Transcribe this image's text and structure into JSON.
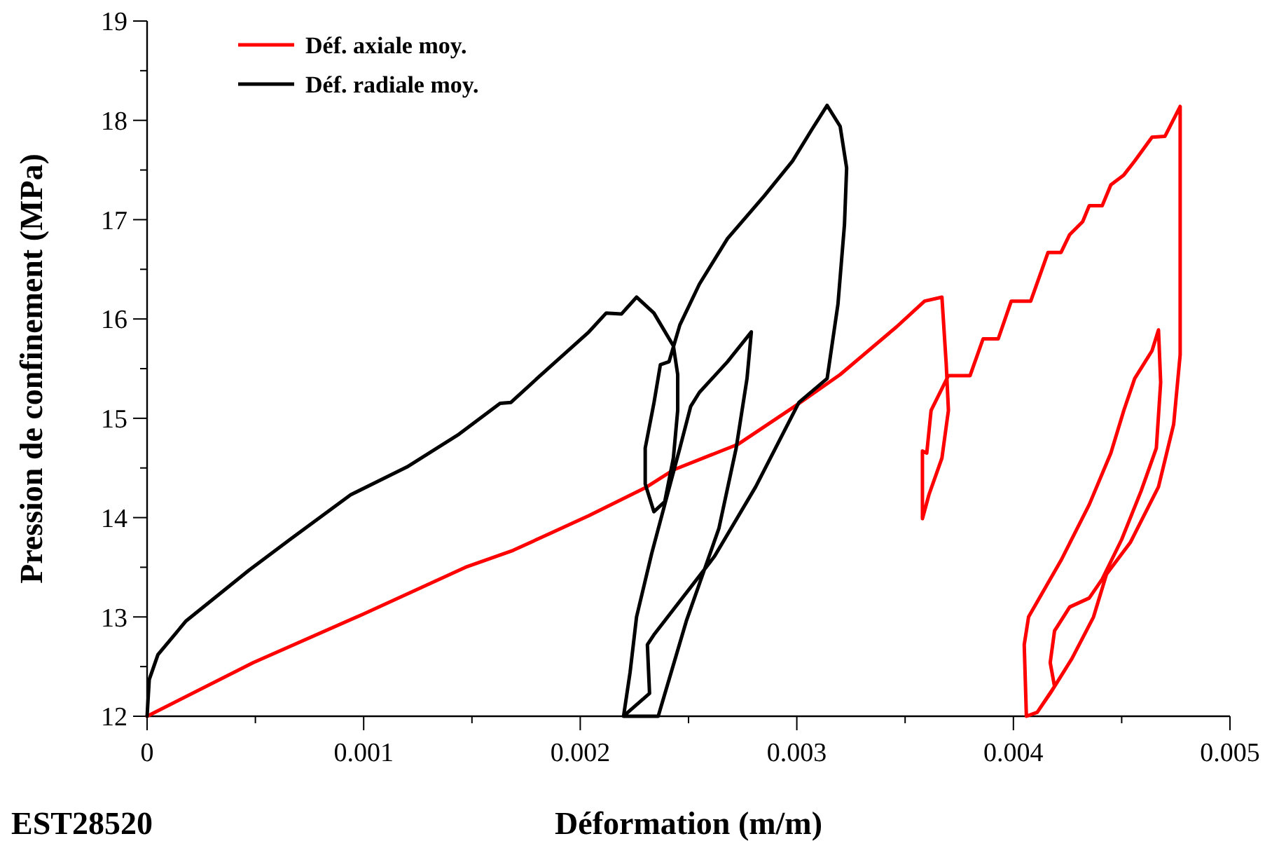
{
  "chart_data": {
    "type": "line",
    "xlabel": "Déformation (m/m)",
    "ylabel": "Pression de confinement (MPa)",
    "annotations": [
      "EST28520"
    ],
    "xlim": [
      0,
      0.005
    ],
    "ylim": [
      12,
      19
    ],
    "xticks": [
      0,
      {
        "value": 0.0005,
        "label": null
      },
      0.001,
      {
        "value": 0.0015,
        "label": null
      },
      0.002,
      {
        "value": 0.0025,
        "label": null
      },
      0.003,
      {
        "value": 0.0035,
        "label": null
      },
      0.004,
      {
        "value": 0.0045,
        "label": null
      },
      0.005
    ],
    "yticks": [
      12,
      {
        "value": 12.5,
        "label": null
      },
      13,
      {
        "value": 13.5,
        "label": null
      },
      14,
      {
        "value": 14.5,
        "label": null
      },
      15,
      {
        "value": 15.5,
        "label": null
      },
      16,
      {
        "value": 16.5,
        "label": null
      },
      17,
      {
        "value": 17.5,
        "label": null
      },
      18,
      {
        "value": 18.5,
        "label": null
      },
      19
    ],
    "legend": "top left",
    "grid": false,
    "marker": "none",
    "line_style": "solid",
    "series": [
      {
        "name": "Déf. axiale moy.",
        "color": "#ff0000",
        "x": [
          0,
          0.00049,
          0.001,
          0.00147,
          0.00169,
          0.00204,
          0.0023,
          0.00243,
          0.00273,
          0.00299,
          0.0032,
          0.00346,
          0.00359,
          0.00367,
          0.00369,
          0.0037,
          0.00367,
          0.00361,
          0.00358,
          0.00358,
          0.0036,
          0.00362,
          0.0037,
          0.0038,
          0.00386,
          0.00393,
          0.00399,
          0.00408,
          0.00416,
          0.00422,
          0.00426,
          0.00432,
          0.00435,
          0.00441,
          0.00445,
          0.00451,
          0.00456,
          0.00464,
          0.0047,
          0.00477,
          0.00477,
          0.00477,
          0.00474,
          0.00467,
          0.00454,
          0.00443,
          0.00437,
          0.00427,
          0.00417,
          0.00411,
          0.00406,
          0.00405,
          0.00407,
          0.00422,
          0.00435,
          0.00445,
          0.00451,
          0.00456,
          0.00464,
          0.00467,
          0.00468,
          0.00466,
          0.00459,
          0.0045,
          0.00441,
          0.00435,
          0.00426,
          0.00419,
          0.00417,
          0.00419,
          0.00411,
          0.00406
        ],
        "values": [
          12,
          12.54,
          13.03,
          13.5,
          13.67,
          14.02,
          14.3,
          14.48,
          14.74,
          15.12,
          15.44,
          15.92,
          16.18,
          16.22,
          15.54,
          15.08,
          14.6,
          14.23,
          13.99,
          14.67,
          14.65,
          15.08,
          15.43,
          15.43,
          15.8,
          15.8,
          16.18,
          16.18,
          16.67,
          16.67,
          16.85,
          16.98,
          17.14,
          17.14,
          17.35,
          17.45,
          17.59,
          17.83,
          17.84,
          18.14,
          17.42,
          15.64,
          14.94,
          14.31,
          13.75,
          13.43,
          13,
          12.58,
          12.23,
          12.04,
          12,
          12.72,
          13,
          13.57,
          14.13,
          14.65,
          15.08,
          15.4,
          15.68,
          15.89,
          15.36,
          14.7,
          14.27,
          13.78,
          13.38,
          13.19,
          13.1,
          12.86,
          12.54,
          12.3,
          12.04,
          12
        ]
      },
      {
        "name": "Déf. radiale moy.",
        "color": "#000000",
        "x": [
          0,
          1e-05,
          5e-05,
          0.00018,
          0.00047,
          0.00066,
          0.00094,
          0.0012,
          0.00144,
          0.00163,
          0.00168,
          0.0018,
          0.00204,
          0.00212,
          0.00219,
          0.00226,
          0.00234,
          0.00243,
          0.00245,
          0.00245,
          0.00243,
          0.00239,
          0.00234,
          0.0023,
          0.0023,
          0.00234,
          0.00237,
          0.00241,
          0.00246,
          0.00255,
          0.00268,
          0.00285,
          0.00298,
          0.00307,
          0.00314,
          0.0032,
          0.00323,
          0.00322,
          0.00319,
          0.00314,
          0.00301,
          0.00281,
          0.00262,
          0.00234,
          0.00231,
          0.00232,
          0.00222,
          0.0022,
          0.00236,
          0.00249,
          0.00264,
          0.00272,
          0.00277,
          0.00279,
          0.00268,
          0.00255,
          0.00251,
          0.00246,
          0.00239,
          0.00233,
          0.00226,
          0.00223,
          0.0022
        ],
        "values": [
          12,
          12.37,
          12.62,
          12.96,
          13.47,
          13.78,
          14.23,
          14.51,
          14.84,
          15.15,
          15.16,
          15.4,
          15.87,
          16.06,
          16.05,
          16.22,
          16.06,
          15.73,
          15.44,
          15.08,
          14.6,
          14.16,
          14.06,
          14.34,
          14.7,
          15.15,
          15.54,
          15.57,
          15.94,
          16.35,
          16.81,
          17.24,
          17.59,
          17.91,
          18.15,
          17.94,
          17.52,
          16.95,
          16.15,
          15.4,
          15.16,
          14.31,
          13.61,
          12.82,
          12.72,
          12.23,
          12.04,
          12,
          12,
          12.96,
          13.89,
          14.7,
          15.4,
          15.87,
          15.57,
          15.26,
          15.12,
          14.7,
          14.13,
          13.64,
          13,
          12.44,
          12
        ]
      }
    ]
  }
}
